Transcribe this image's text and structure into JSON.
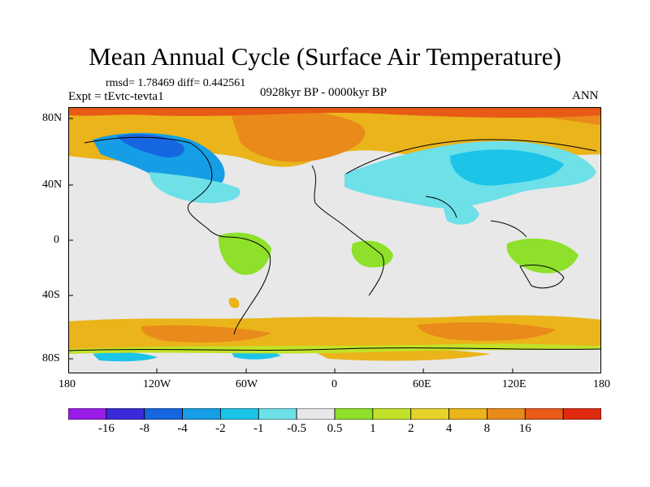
{
  "title": "Mean Annual Cycle (Surface Air Temperature)",
  "stats": "rmsd= 1.78469 diff= 0.442561",
  "experiment": "Expt = tEvtc-tevta1",
  "period": "0928kyr BP - 0000kyr BP",
  "season": "ANN",
  "lat_labels": [
    "80N",
    "40N",
    "0",
    "40S",
    "80S"
  ],
  "lon_labels": [
    "180",
    "120W",
    "60W",
    "0",
    "60E",
    "120E",
    "180"
  ],
  "colorbar": {
    "colors": [
      "#9a1ce8",
      "#3a2ad8",
      "#1566e0",
      "#159ee6",
      "#1cc4e8",
      "#6de0e8",
      "#e8e8e8",
      "#8ee02a",
      "#c2e22a",
      "#e6d22a",
      "#eab41a",
      "#ea8a1a",
      "#e85a16",
      "#e02a10"
    ],
    "labels": [
      "-16",
      "-8",
      "-4",
      "-2",
      "-1",
      "-0.5",
      "0.5",
      "1",
      "2",
      "4",
      "8",
      "16"
    ]
  }
}
